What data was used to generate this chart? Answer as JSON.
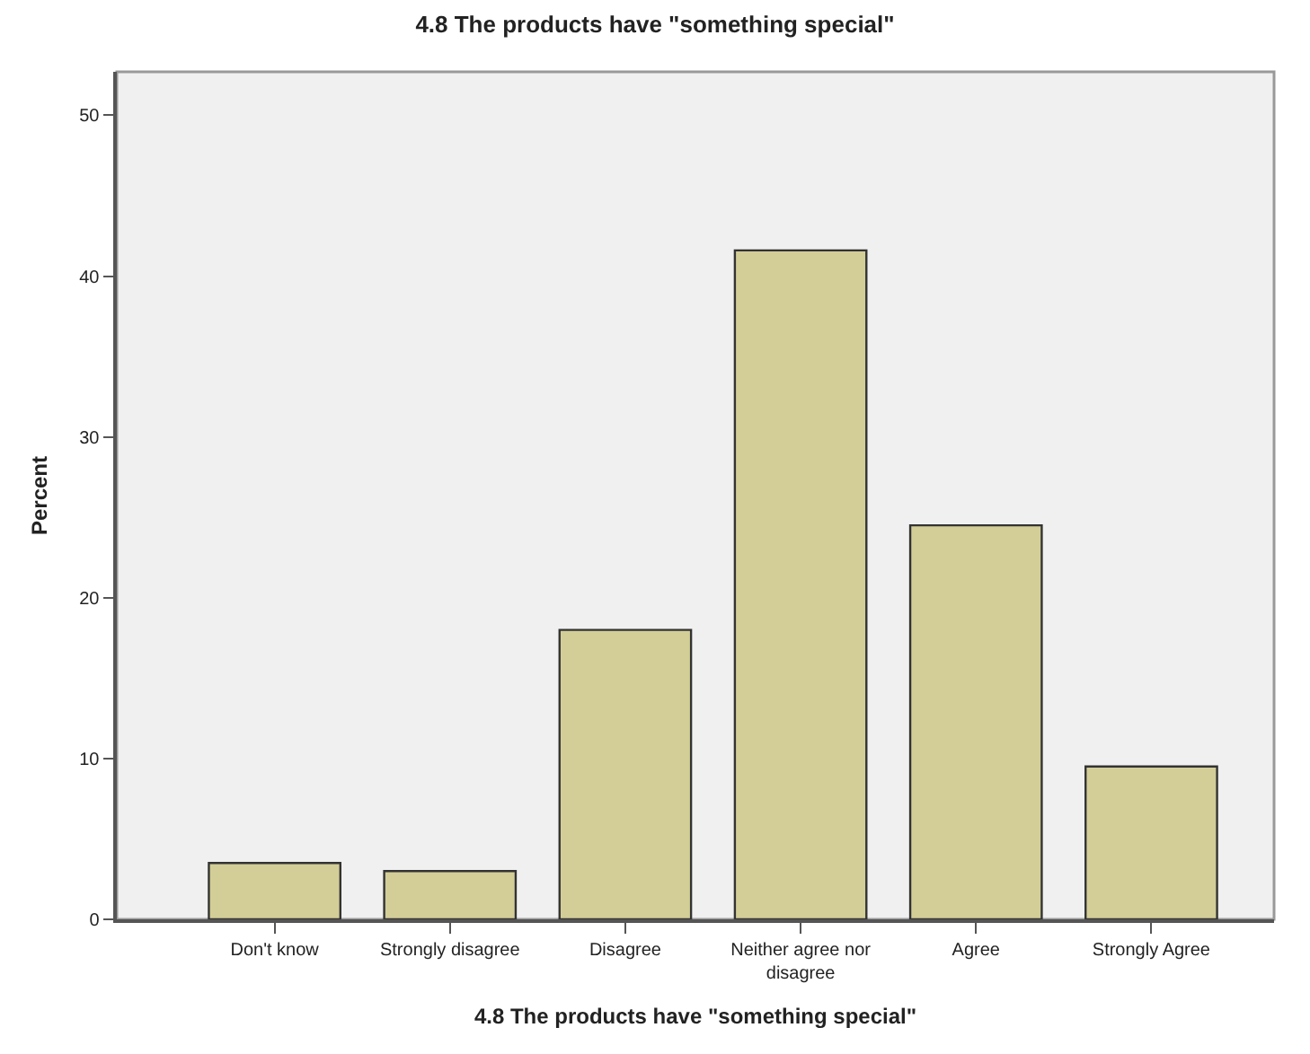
{
  "chart_data": {
    "type": "bar",
    "title": "4.8 The products have \"something special\"",
    "xlabel": "4.8 The products have \"something special\"",
    "ylabel": "Percent",
    "categories": [
      "Don't know",
      "Strongly disagree",
      "Disagree",
      "Neither agree nor disagree",
      "Agree",
      "Strongly Agree"
    ],
    "values": [
      3.5,
      3.0,
      18.0,
      41.6,
      24.5,
      9.5
    ],
    "color": "#d3ce97",
    "ylim": [
      0,
      52.7
    ],
    "yticks": [
      0,
      10,
      20,
      30,
      40,
      50
    ],
    "grid": false,
    "legend": false
  }
}
